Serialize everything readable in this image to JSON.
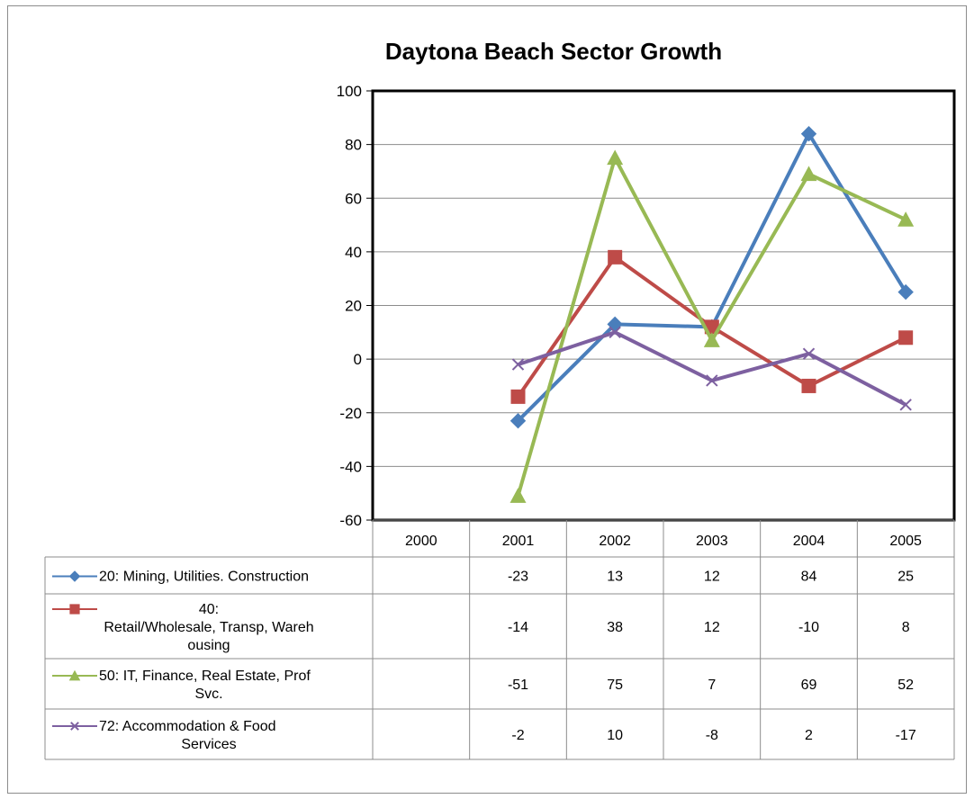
{
  "chart_data": {
    "type": "line",
    "title": "Daytona Beach Sector Growth",
    "categories": [
      "2000",
      "2001",
      "2002",
      "2003",
      "2004",
      "2005"
    ],
    "ylim": [
      -60,
      100
    ],
    "yticks": [
      100,
      80,
      60,
      40,
      20,
      0,
      -20,
      -40,
      -60
    ],
    "grid": true,
    "legend_placement": "data-table-left",
    "series": [
      {
        "name": "20: Mining, Utilities. Construction",
        "name_lines": [
          "20: Mining, Utilities. Construction"
        ],
        "color": "#4a7ebb",
        "marker": "diamond",
        "values": [
          null,
          -23,
          13,
          12,
          84,
          25
        ]
      },
      {
        "name": "40: Retail/Wholesale, Transp, Warehousing",
        "name_lines": [
          "40:",
          "Retail/Wholesale, Transp, Wareh",
          "ousing"
        ],
        "color": "#be4b48",
        "marker": "square",
        "values": [
          null,
          -14,
          38,
          12,
          -10,
          8
        ]
      },
      {
        "name": "50: IT, Finance, Real Estate, Prof Svc.",
        "name_lines": [
          "50: IT, Finance, Real Estate, Prof",
          "Svc."
        ],
        "color": "#98b954",
        "marker": "triangle",
        "values": [
          null,
          -51,
          75,
          7,
          69,
          52
        ]
      },
      {
        "name": "72: Accommodation & Food Services",
        "name_lines": [
          "72: Accommodation & Food",
          "Services"
        ],
        "color": "#7d60a0",
        "marker": "x",
        "values": [
          null,
          -2,
          10,
          -8,
          2,
          -17
        ]
      }
    ]
  }
}
